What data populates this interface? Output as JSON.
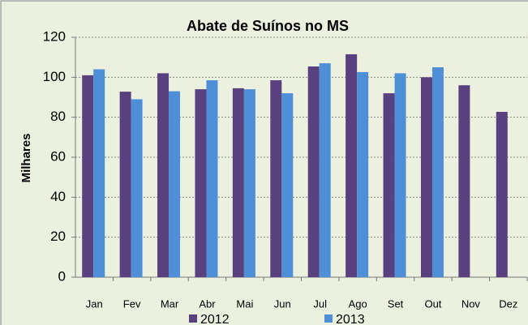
{
  "chart_data": {
    "type": "bar",
    "title": "Abate de Suínos no MS",
    "y_label": "Milhares",
    "categories": [
      "Jan",
      "Fev",
      "Mar",
      "Abr",
      "Mai",
      "Jun",
      "Jul",
      "Ago",
      "Set",
      "Out",
      "Nov",
      "Dez"
    ],
    "series": [
      {
        "name": "2012",
        "color": "#59407f",
        "values": [
          101,
          92.8,
          102,
          94,
          94.5,
          98.5,
          105.4,
          111.5,
          92,
          100,
          96,
          82.7
        ]
      },
      {
        "name": "2013",
        "color": "#4f8fd8",
        "values": [
          104,
          89,
          93,
          98.5,
          94,
          92,
          107,
          102.6,
          102,
          105,
          null,
          null
        ]
      }
    ],
    "ylim": [
      0,
      120
    ],
    "yticks": [
      0,
      20,
      40,
      60,
      80,
      100,
      120
    ],
    "grid": true
  }
}
